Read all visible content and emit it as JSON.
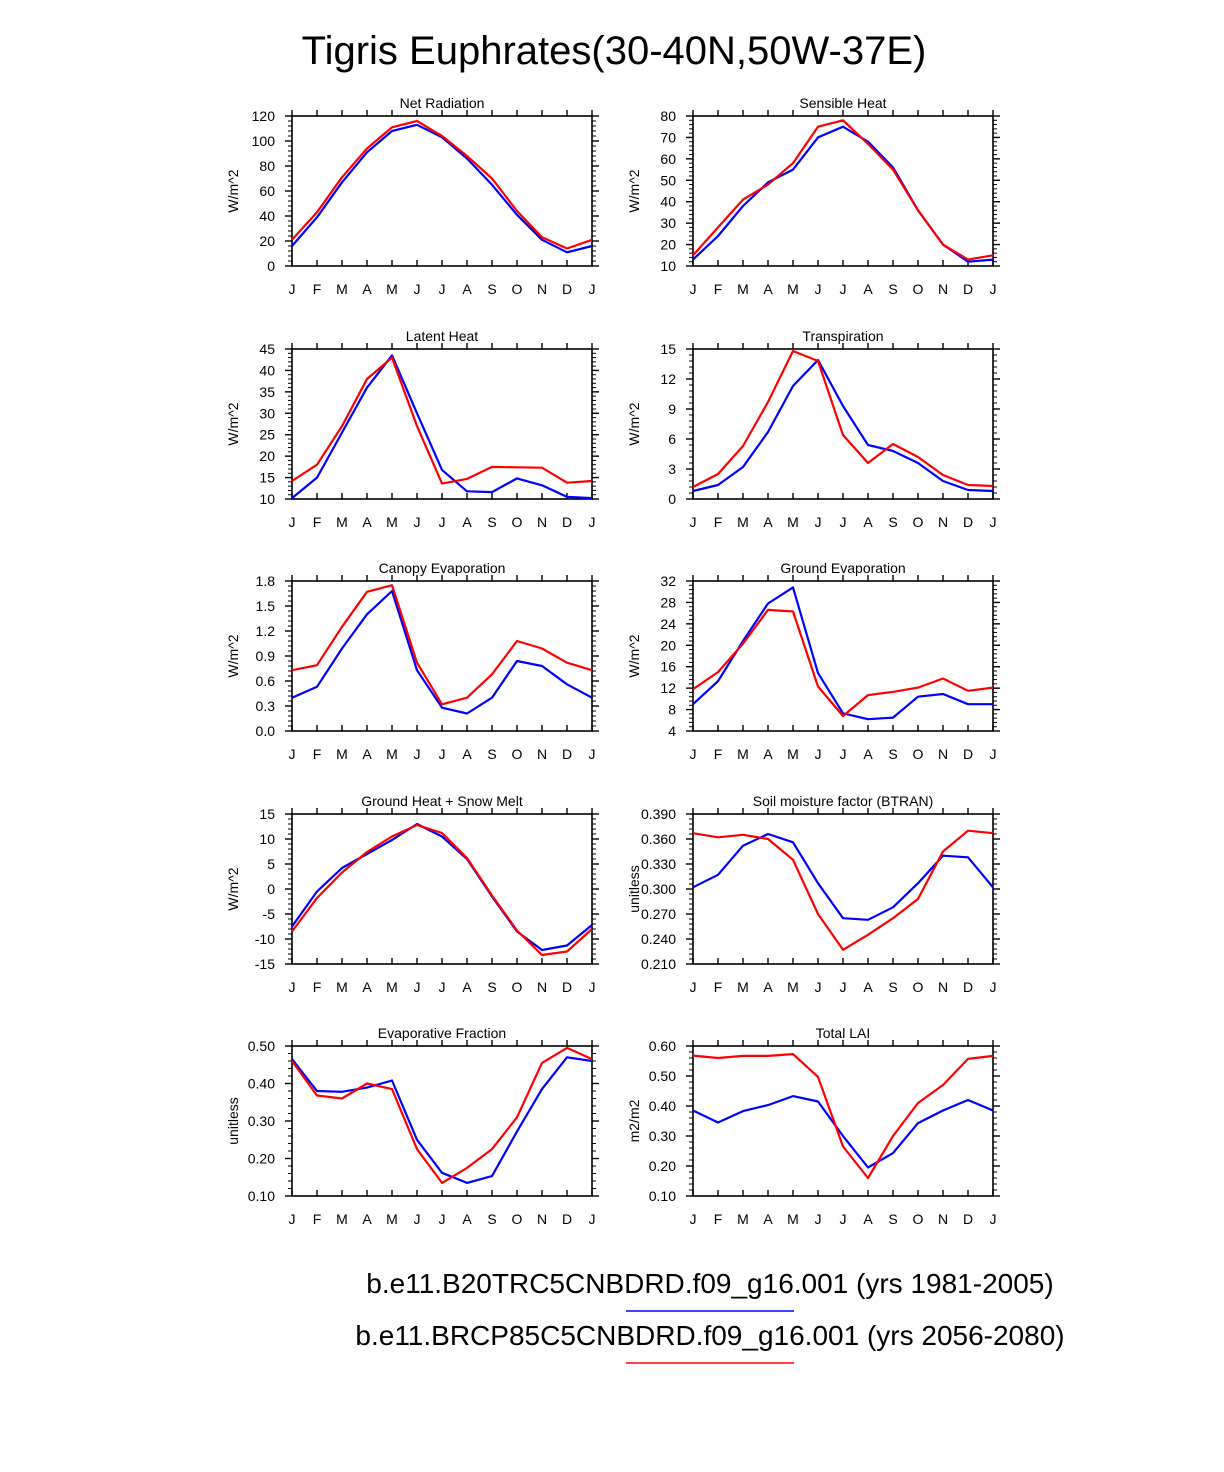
{
  "title": "Tigris Euphrates(30-40N,50W-37E)",
  "colors": {
    "series_1": "#0000ff",
    "series_2": "#ff0000",
    "axis": "#000000"
  },
  "legend": {
    "series_1_label": "b.e11.B20TRC5CNBDRD.f09_g16.001 (yrs 1981-2005)",
    "series_2_label": "b.e11.BRCP85C5CNBDRD.f09_g16.001 (yrs 2056-2080)"
  },
  "chart_data": [
    {
      "type": "line",
      "title": "Net Radiation",
      "ylabel": "W/m^2",
      "categories": [
        "J",
        "F",
        "M",
        "A",
        "M",
        "J",
        "J",
        "A",
        "S",
        "O",
        "N",
        "D",
        "J"
      ],
      "ylim": [
        0,
        120
      ],
      "yticks": [
        0,
        20,
        40,
        60,
        80,
        100,
        120
      ],
      "ytick_labels": [
        "0",
        "20",
        "40",
        "60",
        "80",
        "100",
        "120"
      ],
      "series": [
        {
          "name": "b.e11.B20TRC5CNBDRD.f09_g16.001 (yrs 1981-2005)",
          "color": "#0000ff",
          "values": [
            16,
            39,
            67,
            91,
            108,
            113,
            103,
            86,
            65,
            41,
            21,
            11,
            16
          ]
        },
        {
          "name": "b.e11.BRCP85C5CNBDRD.f09_g16.001 (yrs 2056-2080)",
          "color": "#ff0000",
          "values": [
            21,
            43,
            71,
            94,
            111,
            116,
            104,
            88,
            70,
            44,
            23,
            14,
            21
          ]
        }
      ]
    },
    {
      "type": "line",
      "title": "Sensible Heat",
      "ylabel": "W/m^2",
      "categories": [
        "J",
        "F",
        "M",
        "A",
        "M",
        "J",
        "J",
        "A",
        "S",
        "O",
        "N",
        "D",
        "J"
      ],
      "ylim": [
        10,
        80
      ],
      "yticks": [
        10,
        20,
        30,
        40,
        50,
        60,
        70,
        80
      ],
      "ytick_labels": [
        "10",
        "20",
        "30",
        "40",
        "50",
        "60",
        "70",
        "80"
      ],
      "series": [
        {
          "name": "b.e11.B20TRC5CNBDRD.f09_g16.001 (yrs 1981-2005)",
          "color": "#0000ff",
          "values": [
            13,
            24,
            38,
            49,
            55,
            70,
            75,
            68,
            56,
            36,
            20,
            12,
            13
          ]
        },
        {
          "name": "b.e11.BRCP85C5CNBDRD.f09_g16.001 (yrs 2056-2080)",
          "color": "#ff0000",
          "values": [
            15,
            28,
            41,
            48,
            58,
            75,
            78,
            67,
            55,
            36,
            20,
            13,
            15
          ]
        }
      ]
    },
    {
      "type": "line",
      "title": "Latent Heat",
      "ylabel": "W/m^2",
      "categories": [
        "J",
        "F",
        "M",
        "A",
        "M",
        "J",
        "J",
        "A",
        "S",
        "O",
        "N",
        "D",
        "J"
      ],
      "ylim": [
        10,
        45
      ],
      "yticks": [
        10,
        15,
        20,
        25,
        30,
        35,
        40,
        45
      ],
      "ytick_labels": [
        "10",
        "15",
        "20",
        "25",
        "30",
        "35",
        "40",
        "45"
      ],
      "series": [
        {
          "name": "b.e11.B20TRC5CNBDRD.f09_g16.001 (yrs 1981-2005)",
          "color": "#0000ff",
          "values": [
            10.2,
            15,
            25.5,
            36,
            43.5,
            30,
            16.8,
            11.8,
            11.6,
            14.8,
            13.2,
            10.5,
            10.2
          ]
        },
        {
          "name": "b.e11.BRCP85C5CNBDRD.f09_g16.001 (yrs 2056-2080)",
          "color": "#ff0000",
          "values": [
            14.2,
            18,
            27,
            38,
            43,
            27,
            13.6,
            14.7,
            17.5,
            17.4,
            17.3,
            13.8,
            14.2
          ]
        }
      ]
    },
    {
      "type": "line",
      "title": "Transpiration",
      "ylabel": "W/m^2",
      "categories": [
        "J",
        "F",
        "M",
        "A",
        "M",
        "J",
        "J",
        "A",
        "S",
        "O",
        "N",
        "D",
        "J"
      ],
      "ylim": [
        0,
        15
      ],
      "yticks": [
        0,
        3,
        6,
        9,
        12,
        15
      ],
      "ytick_labels": [
        "0",
        "3",
        "6",
        "9",
        "12",
        "15"
      ],
      "series": [
        {
          "name": "b.e11.B20TRC5CNBDRD.f09_g16.001 (yrs 1981-2005)",
          "color": "#0000ff",
          "values": [
            0.8,
            1.4,
            3.2,
            6.7,
            11.3,
            13.9,
            9.3,
            5.4,
            4.8,
            3.6,
            1.8,
            0.9,
            0.8
          ]
        },
        {
          "name": "b.e11.BRCP85C5CNBDRD.f09_g16.001 (yrs 2056-2080)",
          "color": "#ff0000",
          "values": [
            1.2,
            2.5,
            5.3,
            9.7,
            14.8,
            13.8,
            6.4,
            3.6,
            5.5,
            4.2,
            2.4,
            1.4,
            1.3
          ]
        }
      ]
    },
    {
      "type": "line",
      "title": "Canopy Evaporation",
      "ylabel": "W/m^2",
      "categories": [
        "J",
        "F",
        "M",
        "A",
        "M",
        "J",
        "J",
        "A",
        "S",
        "O",
        "N",
        "D",
        "J"
      ],
      "ylim": [
        0,
        1.8
      ],
      "yticks": [
        0,
        0.3,
        0.6,
        0.9,
        1.2,
        1.5,
        1.8
      ],
      "ytick_labels": [
        "0.0",
        "0.3",
        "0.6",
        "0.9",
        "1.2",
        "1.5",
        "1.8"
      ],
      "series": [
        {
          "name": "b.e11.B20TRC5CNBDRD.f09_g16.001 (yrs 1981-2005)",
          "color": "#0000ff",
          "values": [
            0.4,
            0.53,
            0.99,
            1.4,
            1.68,
            0.73,
            0.28,
            0.21,
            0.4,
            0.84,
            0.78,
            0.56,
            0.4
          ]
        },
        {
          "name": "b.e11.BRCP85C5CNBDRD.f09_g16.001 (yrs 2056-2080)",
          "color": "#ff0000",
          "values": [
            0.73,
            0.79,
            1.25,
            1.67,
            1.75,
            0.82,
            0.32,
            0.4,
            0.68,
            1.08,
            0.99,
            0.82,
            0.73
          ]
        }
      ]
    },
    {
      "type": "line",
      "title": "Ground Evaporation",
      "ylabel": "W/m^2",
      "categories": [
        "J",
        "F",
        "M",
        "A",
        "M",
        "J",
        "J",
        "A",
        "S",
        "O",
        "N",
        "D",
        "J"
      ],
      "ylim": [
        4,
        32
      ],
      "yticks": [
        4,
        8,
        12,
        16,
        20,
        24,
        28,
        32
      ],
      "ytick_labels": [
        "4",
        "8",
        "12",
        "16",
        "20",
        "24",
        "28",
        "32"
      ],
      "series": [
        {
          "name": "b.e11.B20TRC5CNBDRD.f09_g16.001 (yrs 1981-2005)",
          "color": "#0000ff",
          "values": [
            9,
            13.3,
            20.8,
            27.8,
            30.8,
            14.8,
            7.3,
            6.2,
            6.5,
            10.4,
            10.9,
            9,
            9
          ]
        },
        {
          "name": "b.e11.BRCP85C5CNBDRD.f09_g16.001 (yrs 2056-2080)",
          "color": "#ff0000",
          "values": [
            11.8,
            15,
            20.3,
            26.6,
            26.3,
            12.3,
            6.8,
            10.7,
            11.3,
            12.1,
            13.8,
            11.5,
            12.1
          ]
        }
      ]
    },
    {
      "type": "line",
      "title": "Ground Heat + Snow Melt",
      "ylabel": "W/m^2",
      "categories": [
        "J",
        "F",
        "M",
        "A",
        "M",
        "J",
        "J",
        "A",
        "S",
        "O",
        "N",
        "D",
        "J"
      ],
      "ylim": [
        -15,
        15
      ],
      "yticks": [
        -15,
        -10,
        -5,
        0,
        5,
        10,
        15
      ],
      "ytick_labels": [
        "-15",
        "-10",
        "-5",
        "0",
        "5",
        "10",
        "15"
      ],
      "series": [
        {
          "name": "b.e11.B20TRC5CNBDRD.f09_g16.001 (yrs 1981-2005)",
          "color": "#0000ff",
          "values": [
            -7.5,
            -0.5,
            4.2,
            7,
            9.8,
            13,
            10.5,
            6,
            -1.5,
            -8.5,
            -12.2,
            -11.3,
            -7.2
          ]
        },
        {
          "name": "b.e11.BRCP85C5CNBDRD.f09_g16.001 (yrs 2056-2080)",
          "color": "#ff0000",
          "values": [
            -8.5,
            -1.8,
            3.3,
            7.4,
            10.5,
            12.8,
            11.2,
            6.2,
            -1.3,
            -8.3,
            -13.2,
            -12.5,
            -8
          ]
        }
      ]
    },
    {
      "type": "line",
      "title": "Soil moisture factor (BTRAN)",
      "ylabel": "unitless",
      "categories": [
        "J",
        "F",
        "M",
        "A",
        "M",
        "J",
        "J",
        "A",
        "S",
        "O",
        "N",
        "D",
        "J"
      ],
      "ylim": [
        0.21,
        0.39
      ],
      "yticks": [
        0.21,
        0.24,
        0.27,
        0.3,
        0.33,
        0.36,
        0.39
      ],
      "ytick_labels": [
        "0.210",
        "0.240",
        "0.270",
        "0.300",
        "0.330",
        "0.360",
        "0.390"
      ],
      "series": [
        {
          "name": "b.e11.B20TRC5CNBDRD.f09_g16.001 (yrs 1981-2005)",
          "color": "#0000ff",
          "values": [
            0.302,
            0.317,
            0.352,
            0.366,
            0.356,
            0.307,
            0.265,
            0.263,
            0.278,
            0.307,
            0.34,
            0.338,
            0.302
          ]
        },
        {
          "name": "b.e11.BRCP85C5CNBDRD.f09_g16.001 (yrs 2056-2080)",
          "color": "#ff0000",
          "values": [
            0.367,
            0.362,
            0.365,
            0.36,
            0.335,
            0.27,
            0.227,
            0.245,
            0.265,
            0.288,
            0.345,
            0.37,
            0.367
          ]
        }
      ]
    },
    {
      "type": "line",
      "title": "Evaporative Fraction",
      "ylabel": "unitless",
      "categories": [
        "J",
        "F",
        "M",
        "A",
        "M",
        "J",
        "J",
        "A",
        "S",
        "O",
        "N",
        "D",
        "J"
      ],
      "ylim": [
        0.1,
        0.5
      ],
      "yticks": [
        0.1,
        0.2,
        0.3,
        0.4,
        0.5
      ],
      "ytick_labels": [
        "0.10",
        "0.20",
        "0.30",
        "0.40",
        "0.50"
      ],
      "series": [
        {
          "name": "b.e11.B20TRC5CNBDRD.f09_g16.001 (yrs 1981-2005)",
          "color": "#0000ff",
          "values": [
            0.465,
            0.38,
            0.378,
            0.389,
            0.408,
            0.25,
            0.162,
            0.135,
            0.153,
            0.272,
            0.385,
            0.47,
            0.46
          ]
        },
        {
          "name": "b.e11.BRCP85C5CNBDRD.f09_g16.001 (yrs 2056-2080)",
          "color": "#ff0000",
          "values": [
            0.46,
            0.368,
            0.36,
            0.4,
            0.385,
            0.225,
            0.135,
            0.175,
            0.225,
            0.31,
            0.455,
            0.495,
            0.465
          ]
        }
      ]
    },
    {
      "type": "line",
      "title": "Total LAI",
      "ylabel": "m2/m2",
      "categories": [
        "J",
        "F",
        "M",
        "A",
        "M",
        "J",
        "J",
        "A",
        "S",
        "O",
        "N",
        "D",
        "J"
      ],
      "ylim": [
        0.1,
        0.6
      ],
      "yticks": [
        0.1,
        0.2,
        0.3,
        0.4,
        0.5,
        0.6
      ],
      "ytick_labels": [
        "0.10",
        "0.20",
        "0.30",
        "0.40",
        "0.50",
        "0.60"
      ],
      "series": [
        {
          "name": "b.e11.B20TRC5CNBDRD.f09_g16.001 (yrs 1981-2005)",
          "color": "#0000ff",
          "values": [
            0.385,
            0.345,
            0.383,
            0.403,
            0.433,
            0.415,
            0.3,
            0.195,
            0.243,
            0.343,
            0.385,
            0.42,
            0.385
          ]
        },
        {
          "name": "b.e11.BRCP85C5CNBDRD.f09_g16.001 (yrs 2056-2080)",
          "color": "#ff0000",
          "values": [
            0.568,
            0.56,
            0.567,
            0.567,
            0.573,
            0.497,
            0.265,
            0.16,
            0.3,
            0.41,
            0.47,
            0.557,
            0.567
          ]
        }
      ]
    }
  ]
}
